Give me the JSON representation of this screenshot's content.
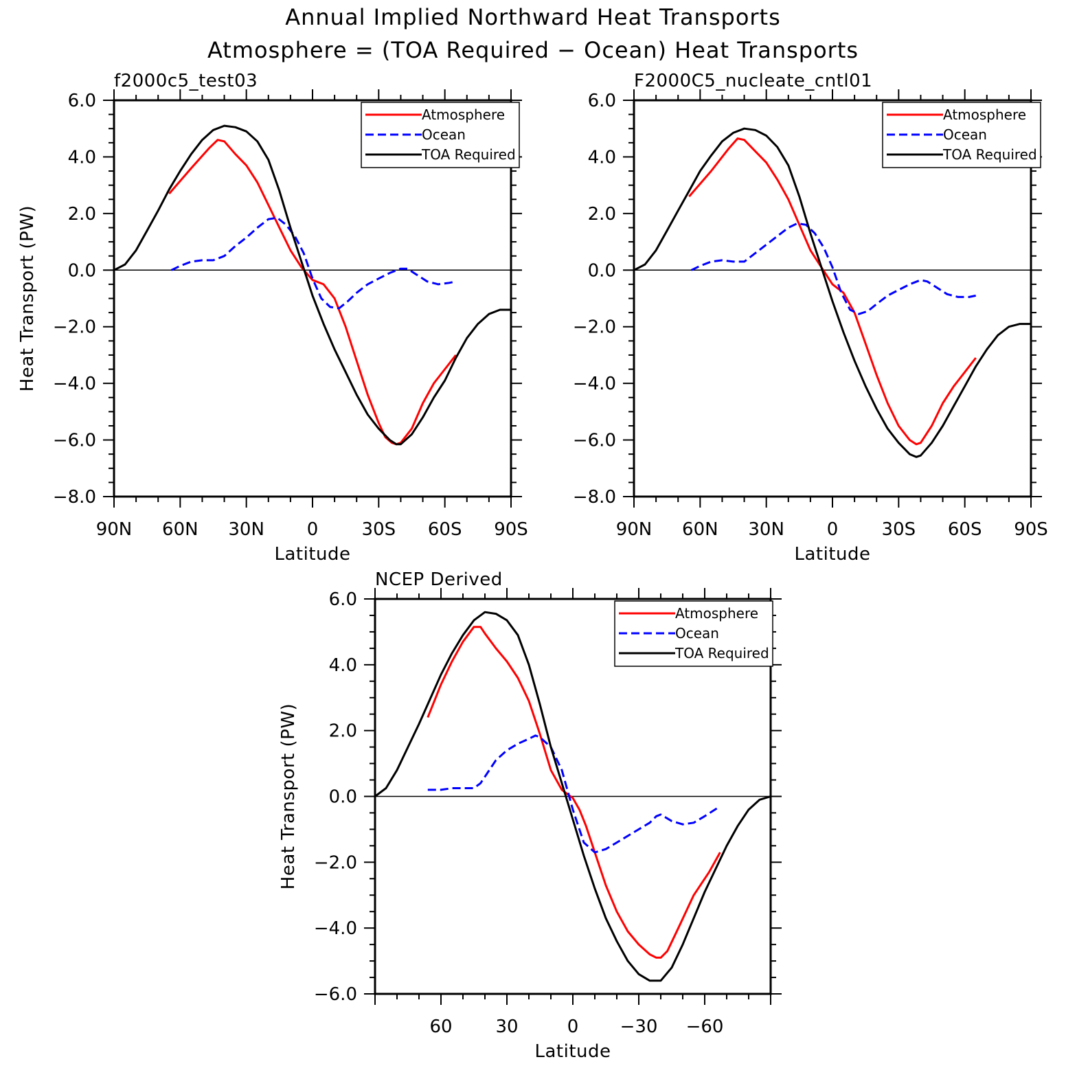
{
  "page": {
    "title_line1": "Annual Implied Northward Heat Transports",
    "title_line2": "Atmosphere = (TOA Required − Ocean) Heat Transports"
  },
  "colors": {
    "atmosphere": "#ff0000",
    "ocean": "#0000ff",
    "toa": "#000000",
    "axis": "#000000"
  },
  "chart_data": [
    {
      "type": "line",
      "title": "f2000c5_test03",
      "xlabel": "Latitude",
      "ylabel": "Heat Transport (PW)",
      "x_direction": "north-to-south",
      "xlim": [
        90,
        -90
      ],
      "ylim": [
        -8,
        6
      ],
      "xticks": [
        90,
        60,
        30,
        0,
        -30,
        -60,
        -90
      ],
      "xtick_labels": [
        "90N",
        "60N",
        "30N",
        "0",
        "30S",
        "60S",
        "90S"
      ],
      "yticks": [
        6,
        4,
        2,
        0,
        -2,
        -4,
        -6,
        -8
      ],
      "ytick_labels": [
        "6.0",
        "4.0",
        "2.0",
        "0.0",
        "−2.0",
        "−4.0",
        "−6.0",
        "−8.0"
      ],
      "zero_line": true,
      "legend_position": "top-right",
      "series": [
        {
          "name": "Atmosphere",
          "style": "solid",
          "color": "#ff0000",
          "x": [
            65,
            55,
            47,
            43,
            40,
            35,
            30,
            25,
            20,
            15,
            10,
            5,
            0,
            -5,
            -10,
            -15,
            -20,
            -25,
            -30,
            -33,
            -36,
            -38,
            -40,
            -45,
            -50,
            -55,
            -60,
            -65
          ],
          "y": [
            2.7,
            3.6,
            4.3,
            4.6,
            4.55,
            4.1,
            3.7,
            3.1,
            2.3,
            1.5,
            0.7,
            0.1,
            -0.35,
            -0.5,
            -1.0,
            -2.0,
            -3.2,
            -4.4,
            -5.4,
            -5.9,
            -6.1,
            -6.15,
            -6.1,
            -5.6,
            -4.7,
            -4.0,
            -3.5,
            -3.0
          ]
        },
        {
          "name": "Ocean",
          "style": "dashed",
          "color": "#0000ff",
          "x": [
            64,
            60,
            55,
            50,
            45,
            40,
            35,
            30,
            25,
            20,
            16,
            12,
            8,
            4,
            0,
            -4,
            -8,
            -12,
            -16,
            -20,
            -25,
            -30,
            -35,
            -40,
            -43,
            -47,
            -52,
            -57,
            -62,
            -65
          ],
          "y": [
            0.0,
            0.15,
            0.3,
            0.35,
            0.35,
            0.5,
            0.85,
            1.15,
            1.5,
            1.8,
            1.85,
            1.6,
            1.2,
            0.6,
            -0.3,
            -1.0,
            -1.3,
            -1.35,
            -1.1,
            -0.8,
            -0.5,
            -0.3,
            -0.1,
            0.05,
            0.05,
            -0.15,
            -0.4,
            -0.5,
            -0.45,
            -0.4
          ]
        },
        {
          "name": "TOA Required",
          "style": "solid",
          "color": "#000000",
          "x": [
            90,
            85,
            80,
            75,
            70,
            65,
            60,
            55,
            50,
            45,
            40,
            35,
            30,
            25,
            20,
            15,
            10,
            5,
            0,
            -5,
            -10,
            -15,
            -20,
            -25,
            -30,
            -35,
            -38,
            -40,
            -45,
            -50,
            -55,
            -60,
            -65,
            -70,
            -75,
            -80,
            -85,
            -90
          ],
          "y": [
            0.0,
            0.2,
            0.7,
            1.4,
            2.1,
            2.85,
            3.5,
            4.1,
            4.6,
            4.95,
            5.1,
            5.05,
            4.9,
            4.55,
            3.9,
            2.8,
            1.5,
            0.3,
            -0.9,
            -1.9,
            -2.8,
            -3.6,
            -4.4,
            -5.1,
            -5.6,
            -6.0,
            -6.15,
            -6.15,
            -5.8,
            -5.2,
            -4.5,
            -3.9,
            -3.1,
            -2.4,
            -1.9,
            -1.55,
            -1.4,
            -1.4
          ]
        }
      ]
    },
    {
      "type": "line",
      "title": "F2000C5_nucleate_cntl01",
      "xlabel": "Latitude",
      "ylabel": "",
      "x_direction": "north-to-south",
      "xlim": [
        90,
        -90
      ],
      "ylim": [
        -8,
        6
      ],
      "xticks": [
        90,
        60,
        30,
        0,
        -30,
        -60,
        -90
      ],
      "xtick_labels": [
        "90N",
        "60N",
        "30N",
        "0",
        "30S",
        "60S",
        "90S"
      ],
      "yticks": [
        6,
        4,
        2,
        0,
        -2,
        -4,
        -6,
        -8
      ],
      "ytick_labels": [
        "6.0",
        "4.0",
        "2.0",
        "0.0",
        "−2.0",
        "−4.0",
        "−6.0",
        "−8.0"
      ],
      "zero_line": true,
      "legend_position": "top-right",
      "series": [
        {
          "name": "Atmosphere",
          "style": "solid",
          "color": "#ff0000",
          "x": [
            65,
            55,
            47,
            43,
            40,
            35,
            30,
            25,
            20,
            15,
            10,
            5,
            0,
            -5,
            -10,
            -15,
            -20,
            -25,
            -30,
            -35,
            -38,
            -40,
            -45,
            -50,
            -55,
            -60,
            -65
          ],
          "y": [
            2.6,
            3.5,
            4.3,
            4.65,
            4.6,
            4.2,
            3.8,
            3.2,
            2.5,
            1.6,
            0.7,
            0.1,
            -0.5,
            -0.8,
            -1.5,
            -2.6,
            -3.7,
            -4.7,
            -5.5,
            -6.0,
            -6.15,
            -6.1,
            -5.5,
            -4.7,
            -4.1,
            -3.6,
            -3.1
          ]
        },
        {
          "name": "Ocean",
          "style": "dashed",
          "color": "#0000ff",
          "x": [
            64,
            60,
            55,
            50,
            45,
            40,
            35,
            30,
            25,
            20,
            16,
            12,
            8,
            4,
            0,
            -4,
            -8,
            -12,
            -16,
            -20,
            -25,
            -30,
            -35,
            -40,
            -43,
            -47,
            -52,
            -57,
            -62,
            -65
          ],
          "y": [
            0.0,
            0.15,
            0.3,
            0.35,
            0.3,
            0.3,
            0.6,
            0.9,
            1.2,
            1.5,
            1.65,
            1.6,
            1.3,
            0.8,
            0.1,
            -0.8,
            -1.4,
            -1.55,
            -1.45,
            -1.2,
            -0.9,
            -0.7,
            -0.5,
            -0.35,
            -0.4,
            -0.6,
            -0.85,
            -0.95,
            -0.95,
            -0.9
          ]
        },
        {
          "name": "TOA Required",
          "style": "solid",
          "color": "#000000",
          "x": [
            90,
            85,
            80,
            75,
            70,
            65,
            60,
            55,
            50,
            45,
            40,
            35,
            30,
            25,
            20,
            15,
            10,
            5,
            0,
            -5,
            -10,
            -15,
            -20,
            -25,
            -30,
            -35,
            -38,
            -40,
            -45,
            -50,
            -55,
            -60,
            -65,
            -70,
            -75,
            -80,
            -85,
            -90
          ],
          "y": [
            0.0,
            0.2,
            0.7,
            1.4,
            2.1,
            2.8,
            3.5,
            4.05,
            4.55,
            4.85,
            5.0,
            4.95,
            4.75,
            4.35,
            3.7,
            2.6,
            1.3,
            0.1,
            -1.1,
            -2.2,
            -3.2,
            -4.1,
            -4.9,
            -5.6,
            -6.1,
            -6.5,
            -6.6,
            -6.55,
            -6.1,
            -5.5,
            -4.8,
            -4.1,
            -3.4,
            -2.8,
            -2.3,
            -2.0,
            -1.9,
            -1.9
          ]
        }
      ]
    },
    {
      "type": "line",
      "title": "NCEP Derived",
      "xlabel": "Latitude",
      "ylabel": "Heat Transport (PW)",
      "x_direction": "north-to-south",
      "xlim": [
        90,
        -90
      ],
      "ylim": [
        -6,
        6
      ],
      "xticks": [
        60,
        30,
        0,
        -30,
        -60
      ],
      "xtick_labels": [
        "60",
        "30",
        "0",
        "−30",
        "−60"
      ],
      "yticks": [
        6,
        4,
        2,
        0,
        -2,
        -4,
        -6
      ],
      "ytick_labels": [
        "6.0",
        "4.0",
        "2.0",
        "0.0",
        "−2.0",
        "−4.0",
        "−6.0"
      ],
      "zero_line": true,
      "legend_position": "top-right",
      "series": [
        {
          "name": "Atmosphere",
          "style": "solid",
          "color": "#ff0000",
          "x": [
            66,
            60,
            55,
            50,
            45,
            42,
            40,
            35,
            30,
            25,
            20,
            15,
            10,
            5,
            0,
            -3,
            -6,
            -10,
            -15,
            -20,
            -25,
            -30,
            -35,
            -38,
            -40,
            -43,
            -48,
            -55,
            -62,
            -67
          ],
          "y": [
            2.4,
            3.4,
            4.1,
            4.7,
            5.15,
            5.15,
            4.95,
            4.5,
            4.1,
            3.6,
            2.9,
            1.9,
            0.8,
            0.2,
            -0.05,
            -0.4,
            -0.9,
            -1.7,
            -2.7,
            -3.5,
            -4.1,
            -4.5,
            -4.8,
            -4.9,
            -4.9,
            -4.7,
            -4.0,
            -3.0,
            -2.3,
            -1.7
          ]
        },
        {
          "name": "Ocean",
          "style": "dashed",
          "color": "#0000ff",
          "x": [
            66,
            60,
            55,
            50,
            45,
            42,
            40,
            35,
            30,
            25,
            20,
            17,
            15,
            10,
            5,
            0,
            -5,
            -10,
            -15,
            -20,
            -25,
            -30,
            -35,
            -38,
            -40,
            -45,
            -50,
            -55,
            -60,
            -67
          ],
          "y": [
            0.2,
            0.2,
            0.25,
            0.25,
            0.25,
            0.4,
            0.6,
            1.1,
            1.4,
            1.6,
            1.75,
            1.85,
            1.8,
            1.5,
            0.8,
            -0.4,
            -1.4,
            -1.7,
            -1.6,
            -1.4,
            -1.2,
            -1.0,
            -0.8,
            -0.6,
            -0.55,
            -0.75,
            -0.85,
            -0.8,
            -0.6,
            -0.3
          ]
        },
        {
          "name": "TOA Required",
          "style": "solid",
          "color": "#000000",
          "x": [
            90,
            85,
            80,
            75,
            70,
            65,
            60,
            55,
            50,
            45,
            40,
            35,
            30,
            25,
            20,
            15,
            10,
            5,
            0,
            -5,
            -10,
            -15,
            -20,
            -25,
            -30,
            -35,
            -40,
            -45,
            -50,
            -55,
            -60,
            -65,
            -70,
            -75,
            -80,
            -85,
            -90
          ],
          "y": [
            0.0,
            0.25,
            0.8,
            1.5,
            2.2,
            2.95,
            3.7,
            4.35,
            4.9,
            5.35,
            5.6,
            5.55,
            5.35,
            4.9,
            4.0,
            2.8,
            1.5,
            0.4,
            -0.7,
            -1.8,
            -2.8,
            -3.7,
            -4.4,
            -5.0,
            -5.4,
            -5.6,
            -5.6,
            -5.2,
            -4.5,
            -3.7,
            -2.9,
            -2.2,
            -1.5,
            -0.9,
            -0.4,
            -0.1,
            0.0
          ]
        }
      ]
    }
  ]
}
